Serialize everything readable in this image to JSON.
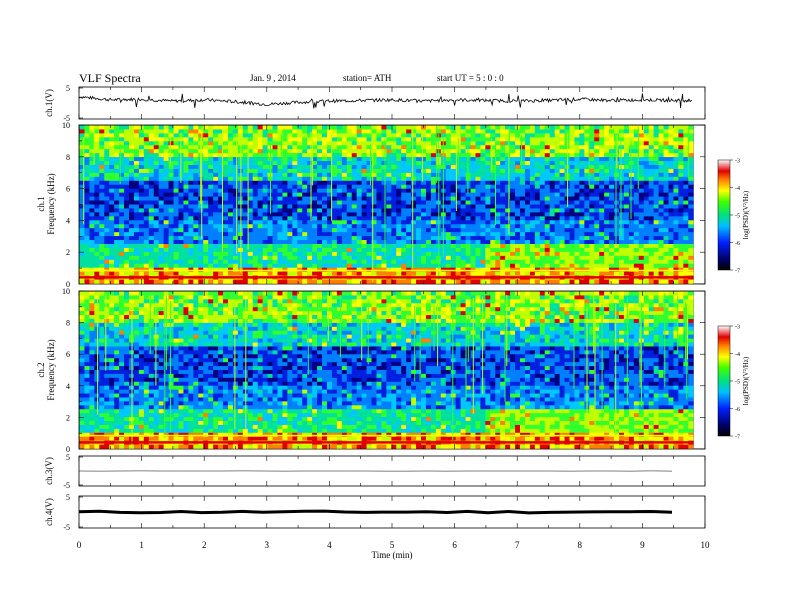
{
  "header": {
    "title": "VLF  Spectra",
    "date": "Jan.  9  ,  2014",
    "station": "station= ATH",
    "start": "start  UT  =    5  : 0  : 0"
  },
  "chart_data": [
    {
      "type": "line",
      "name": "ch1-waveform",
      "ylabel": "ch.1(V)",
      "ylim": [
        -5,
        5
      ],
      "yticks": [
        "5",
        "-5"
      ],
      "xlim": [
        0,
        10
      ],
      "x": [
        0,
        0.5,
        1,
        1.5,
        2,
        2.5,
        3,
        3.5,
        4,
        4.5,
        5,
        5.5,
        6,
        6.5,
        7,
        7.5,
        8,
        8.5,
        9,
        9.5,
        9.8
      ],
      "values": [
        2.0,
        1.0,
        1.2,
        0.6,
        1.0,
        0.4,
        -0.4,
        0.2,
        0.6,
        0.8,
        1.0,
        0.6,
        1.0,
        0.8,
        0.6,
        0.8,
        1.2,
        0.8,
        1.0,
        0.8,
        0.8
      ]
    },
    {
      "type": "heatmap",
      "name": "ch1-spectrogram",
      "ylabel": "ch.1\nFrequency  (kHz)",
      "ylim": [
        0,
        10
      ],
      "yticks": [
        "0",
        "2",
        "4",
        "6",
        "8",
        "10"
      ],
      "xlim": [
        0,
        10
      ],
      "colorbar": {
        "label": "log(PSD)(V²/Hz)",
        "range": [
          -7,
          -3
        ],
        "ticks": [
          "-3",
          "-4",
          "-5",
          "-6",
          "-7"
        ]
      }
    },
    {
      "type": "heatmap",
      "name": "ch2-spectrogram",
      "ylabel": "ch.2\nFrequency  (kHz)",
      "ylim": [
        0,
        10
      ],
      "yticks": [
        "0",
        "2",
        "4",
        "6",
        "8",
        "10"
      ],
      "xlim": [
        0,
        10
      ],
      "colorbar": {
        "label": "log(PSD)(V²/Hz)",
        "range": [
          -7,
          -3
        ],
        "ticks": [
          "-3",
          "-4",
          "-5",
          "-6",
          "-7"
        ]
      }
    },
    {
      "type": "line",
      "name": "ch3-waveform",
      "ylabel": "ch.3(V)",
      "ylim": [
        -5,
        5
      ],
      "yticks": [
        "5",
        "-5"
      ],
      "x": [
        0,
        9.8
      ],
      "values": [
        0,
        0
      ]
    },
    {
      "type": "line",
      "name": "ch4-waveform",
      "ylabel": "ch.4(V)",
      "ylim": [
        -5,
        5
      ],
      "yticks": [
        "5",
        "-5"
      ],
      "x": [
        0,
        9.8
      ],
      "values": [
        0,
        0
      ]
    }
  ],
  "xaxis": {
    "label": "Time  (min)",
    "ticks": [
      "0",
      "1",
      "2",
      "3",
      "4",
      "5",
      "6",
      "7",
      "8",
      "9",
      "10"
    ]
  }
}
